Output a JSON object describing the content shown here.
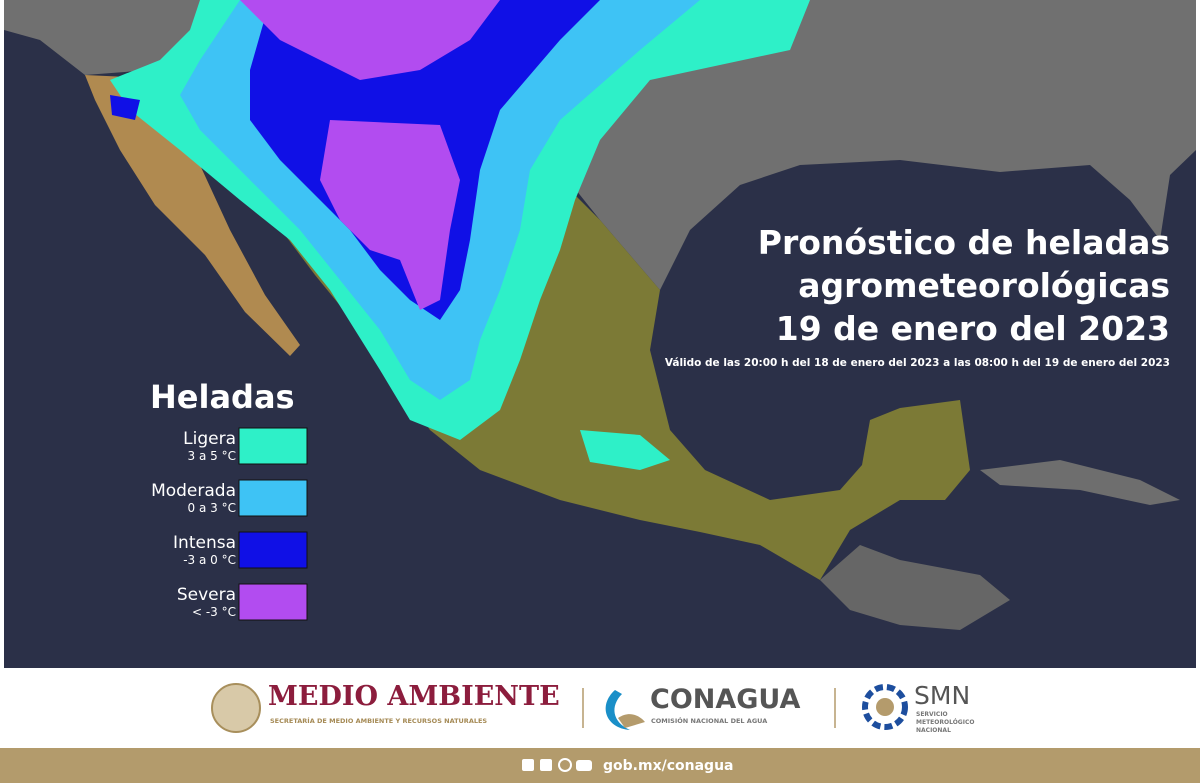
{
  "header": {
    "title_lines": [
      "Pronóstico de heladas",
      "agrometeorológicas",
      "19 de enero del 2023"
    ],
    "subtitle": "Válido de las 20:00 h del 18 de enero del 2023 a las 08:00 h del 19 de enero del 2023"
  },
  "legend": {
    "title": "Heladas",
    "items": [
      {
        "label": "Ligera",
        "range": "3 a 5 °C",
        "color": "#2ef0c8"
      },
      {
        "label": "Moderada",
        "range": "0 a 3 °C",
        "color": "#3ec3f5"
      },
      {
        "label": "Intensa",
        "range": "-3 a 0 °C",
        "color": "#1010e6"
      },
      {
        "label": "Severa",
        "range": "< -3 °C",
        "color": "#b24cf0"
      }
    ]
  },
  "footer": {
    "logos": [
      {
        "name": "MEDIO AMBIENTE",
        "subtitle": [
          "SECRETARÍA DE MEDIO AMBIENTE Y RECURSOS NATURALES"
        ]
      },
      {
        "name": "CONAGUA",
        "subtitle": [
          "COMISIÓN NACIONAL DEL AGUA"
        ]
      },
      {
        "name": "SMN",
        "subtitle": [
          "SERVICIO",
          "METEOROLÓGICO",
          "NACIONAL"
        ]
      }
    ],
    "url": "gob.mx/conagua"
  }
}
